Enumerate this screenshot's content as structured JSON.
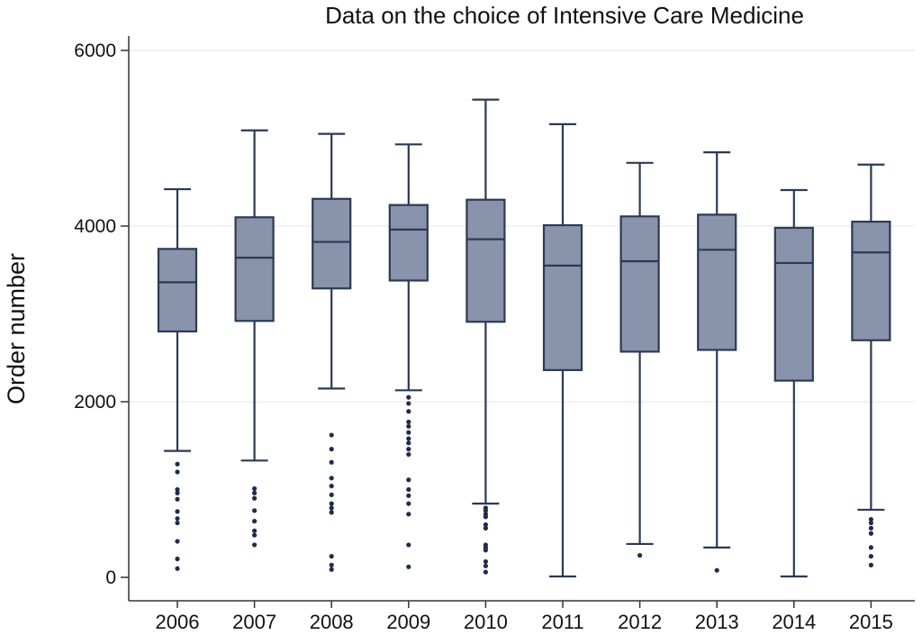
{
  "chart_data": {
    "type": "box",
    "title": "Data on the choice of Intensive Care Medicine",
    "ylabel": "Order number",
    "xlabel": "",
    "ylim": [
      0,
      6000
    ],
    "yticks": [
      0,
      2000,
      4000,
      6000
    ],
    "grid": true,
    "categories": [
      "2006",
      "2007",
      "2008",
      "2009",
      "2010",
      "2011",
      "2012",
      "2013",
      "2014",
      "2015"
    ],
    "box_fill": "#8993ab",
    "box_stroke": "#2b3a55",
    "boxes": [
      {
        "category": "2006",
        "whisker_low": 1440,
        "q1": 2800,
        "median": 3360,
        "q3": 3740,
        "whisker_high": 4420,
        "outliers": [
          1290,
          1200,
          1000,
          960,
          890,
          750,
          670,
          620,
          410,
          210,
          100
        ]
      },
      {
        "category": "2007",
        "whisker_low": 1330,
        "q1": 2920,
        "median": 3640,
        "q3": 4100,
        "whisker_high": 5090,
        "outliers": [
          1010,
          960,
          900,
          760,
          640,
          530,
          480,
          370
        ]
      },
      {
        "category": "2008",
        "whisker_low": 2150,
        "q1": 3290,
        "median": 3820,
        "q3": 4310,
        "whisker_high": 5050,
        "outliers": [
          1620,
          1460,
          1310,
          1130,
          1040,
          940,
          840,
          790,
          740,
          240,
          140,
          90
        ]
      },
      {
        "category": "2009",
        "whisker_low": 2130,
        "q1": 3380,
        "median": 3960,
        "q3": 4240,
        "whisker_high": 4930,
        "outliers": [
          2050,
          1980,
          1890,
          1770,
          1720,
          1650,
          1580,
          1530,
          1460,
          1400,
          1110,
          1000,
          930,
          840,
          720,
          370,
          120
        ]
      },
      {
        "category": "2010",
        "whisker_low": 840,
        "q1": 2910,
        "median": 3850,
        "q3": 4300,
        "whisker_high": 5440,
        "outliers": [
          790,
          760,
          720,
          690,
          600,
          560,
          370,
          340,
          310,
          180,
          130,
          60
        ]
      },
      {
        "category": "2011",
        "whisker_low": 10,
        "q1": 2360,
        "median": 3550,
        "q3": 4010,
        "whisker_high": 5160,
        "outliers": []
      },
      {
        "category": "2012",
        "whisker_low": 380,
        "q1": 2570,
        "median": 3600,
        "q3": 4110,
        "whisker_high": 4720,
        "outliers": [
          250
        ]
      },
      {
        "category": "2013",
        "whisker_low": 340,
        "q1": 2590,
        "median": 3730,
        "q3": 4130,
        "whisker_high": 4840,
        "outliers": [
          80
        ]
      },
      {
        "category": "2014",
        "whisker_low": 10,
        "q1": 2240,
        "median": 3580,
        "q3": 3980,
        "whisker_high": 4410,
        "outliers": []
      },
      {
        "category": "2015",
        "whisker_low": 770,
        "q1": 2700,
        "median": 3700,
        "q3": 4050,
        "whisker_high": 4700,
        "outliers": [
          660,
          620,
          560,
          500,
          340,
          240,
          140
        ]
      }
    ]
  }
}
